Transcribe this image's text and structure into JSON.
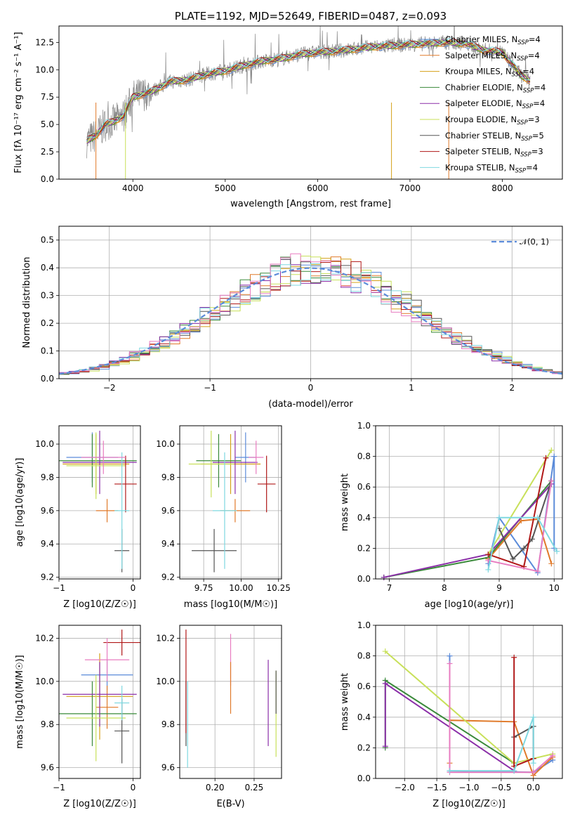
{
  "colors": {
    "Chabrier MILES": "#5b8bd9",
    "Salpeter MILES": "#e07a2a",
    "Kroupa MILES": "#d4a017",
    "Chabrier ELODIE": "#3a8a3a",
    "Salpeter ELODIE": "#8b2fa8",
    "Kroupa ELODIE": "#c8e05a",
    "Chabrier STELIB": "#555555",
    "Salpeter STELIB": "#b01818",
    "Kroupa STELIB": "#7fd8e0",
    "Salpeter STELIB pink": "#e87cc0"
  },
  "chart_data": [
    {
      "id": "spectrum",
      "type": "line",
      "title": "PLATE=1192, MJD=52649, FIBERID=0487, z=0.093",
      "xlabel": "wavelength [Angstrom, rest frame]",
      "ylabel": "Flux [fλ 10⁻¹⁷ erg cm⁻² s⁻¹ A⁻¹]",
      "xlim": [
        3200,
        8650
      ],
      "ylim": [
        0,
        14
      ],
      "xticks": [
        4000,
        5000,
        6000,
        7000,
        8000
      ],
      "yticks": [
        0.0,
        2.5,
        5.0,
        7.5,
        10.0,
        12.5
      ],
      "grid": false,
      "legend_position": "right",
      "legend": [
        {
          "label": "Chabrier MILES, N",
          "sub": "SSP",
          "tail": "=4",
          "color": "#5b8bd9"
        },
        {
          "label": "Salpeter MILES, N",
          "sub": "SSP",
          "tail": "=4",
          "color": "#e07a2a"
        },
        {
          "label": "Kroupa MILES, N",
          "sub": "SSP",
          "tail": "=4",
          "color": "#d4a017"
        },
        {
          "label": "Chabrier ELODIE, N",
          "sub": "SSP",
          "tail": "=4",
          "color": "#3a8a3a"
        },
        {
          "label": "Salpeter ELODIE, N",
          "sub": "SSP",
          "tail": "=4",
          "color": "#8b2fa8"
        },
        {
          "label": "Kroupa ELODIE, N",
          "sub": "SSP",
          "tail": "=3",
          "color": "#c8e05a"
        },
        {
          "label": "Chabrier STELIB, N",
          "sub": "SSP",
          "tail": "=5",
          "color": "#555555"
        },
        {
          "label": "Salpeter STELIB, N",
          "sub": "SSP",
          "tail": "=3",
          "color": "#b01818"
        },
        {
          "label": "Kroupa STELIB, N",
          "sub": "SSP",
          "tail": "=4",
          "color": "#7fd8e0"
        }
      ],
      "data_series": [
        {
          "x": 3500,
          "y": 3.5
        },
        {
          "x": 3600,
          "y": 4.0
        },
        {
          "x": 3700,
          "y": 5.0
        },
        {
          "x": 3800,
          "y": 5.3
        },
        {
          "x": 3900,
          "y": 5.8
        },
        {
          "x": 4000,
          "y": 7.5
        },
        {
          "x": 4200,
          "y": 8.0
        },
        {
          "x": 4400,
          "y": 8.9
        },
        {
          "x": 4600,
          "y": 9.1
        },
        {
          "x": 4800,
          "y": 9.6
        },
        {
          "x": 5000,
          "y": 9.9
        },
        {
          "x": 5200,
          "y": 10.4
        },
        {
          "x": 5400,
          "y": 10.8
        },
        {
          "x": 5600,
          "y": 11.0
        },
        {
          "x": 5800,
          "y": 11.4
        },
        {
          "x": 6000,
          "y": 11.6
        },
        {
          "x": 6200,
          "y": 11.7
        },
        {
          "x": 6400,
          "y": 11.9
        },
        {
          "x": 6600,
          "y": 12.1
        },
        {
          "x": 6800,
          "y": 12.2
        },
        {
          "x": 7000,
          "y": 12.3
        },
        {
          "x": 7200,
          "y": 12.4
        },
        {
          "x": 7400,
          "y": 12.5
        },
        {
          "x": 7600,
          "y": 12.4
        },
        {
          "x": 7800,
          "y": 11.8
        },
        {
          "x": 8000,
          "y": 11.6
        },
        {
          "x": 8200,
          "y": 9.5
        },
        {
          "x": 8300,
          "y": 9.0
        }
      ]
    },
    {
      "id": "residuals",
      "type": "line",
      "xlabel": "(data-model)/error",
      "ylabel": "Normed distribution",
      "xlim": [
        -2.5,
        2.5
      ],
      "ylim": [
        0,
        0.55
      ],
      "xticks": [
        -2,
        -1,
        0,
        1,
        2
      ],
      "xtick_labels": [
        "−2",
        "−1",
        "0",
        "1",
        "2"
      ],
      "yticks": [
        0.0,
        0.1,
        0.2,
        0.3,
        0.4,
        0.5
      ],
      "grid": true,
      "legend_position": "top-right",
      "legend": [
        {
          "label": "𝒩(0, 1)",
          "color": "#5b8bd9"
        }
      ],
      "gaussian": {
        "mu": 0,
        "sigma": 1
      }
    },
    {
      "id": "age-vs-Z",
      "type": "scatter",
      "xlabel": "Z [log10(Z/Z☉)]",
      "ylabel": "age  [log10(age/yr)]",
      "xlim": [
        -1.0,
        0.1
      ],
      "ylim": [
        9.19,
        10.11
      ],
      "xticks": [
        -1,
        0
      ],
      "xtick_labels": [
        "−1",
        "0"
      ],
      "yticks": [
        9.2,
        9.4,
        9.6,
        9.8,
        10.0
      ],
      "grid": true,
      "points": [
        {
          "x": -0.55,
          "y": 9.92,
          "xerr": 0.35,
          "yerr": 0.15,
          "color": "#5b8bd9"
        },
        {
          "x": -0.35,
          "y": 9.6,
          "xerr": 0.15,
          "yerr": 0.07,
          "color": "#e07a2a"
        },
        {
          "x": -0.5,
          "y": 9.88,
          "xerr": 0.45,
          "yerr": 0.18,
          "color": "#d4a017"
        },
        {
          "x": -0.55,
          "y": 9.9,
          "xerr": 0.6,
          "yerr": 0.16,
          "color": "#3a8a3a"
        },
        {
          "x": -0.45,
          "y": 9.89,
          "xerr": 0.5,
          "yerr": 0.19,
          "color": "#8b2fa8"
        },
        {
          "x": -0.5,
          "y": 9.87,
          "xerr": 0.4,
          "yerr": 0.2,
          "color": "#c8e05a"
        },
        {
          "x": -0.15,
          "y": 9.36,
          "xerr": 0.1,
          "yerr": 0.13,
          "color": "#555555"
        },
        {
          "x": -0.1,
          "y": 9.76,
          "xerr": 0.15,
          "yerr": 0.17,
          "color": "#b01818"
        },
        {
          "x": -0.15,
          "y": 9.6,
          "xerr": 0.1,
          "yerr": 0.35,
          "color": "#7fd8e0"
        },
        {
          "x": -0.4,
          "y": 9.92,
          "xerr": 0.3,
          "yerr": 0.1,
          "color": "#e87cc0"
        }
      ]
    },
    {
      "id": "age-vs-mass",
      "type": "scatter",
      "xlabel": "mass [log10(M/M☉)]",
      "ylabel": "",
      "xlim": [
        9.59,
        10.27
      ],
      "ylim": [
        9.19,
        10.11
      ],
      "xticks": [
        9.75,
        10.0,
        10.25
      ],
      "xtick_labels": [
        "9.75",
        "10.00",
        "10.25"
      ],
      "yticks": [
        9.2,
        9.4,
        9.6,
        9.8,
        10.0
      ],
      "grid": true,
      "points": [
        {
          "x": 10.03,
          "y": 9.92,
          "xerr": 0.07,
          "yerr": 0.15,
          "color": "#5b8bd9"
        },
        {
          "x": 9.96,
          "y": 9.6,
          "xerr": 0.1,
          "yerr": 0.07,
          "color": "#e07a2a"
        },
        {
          "x": 9.93,
          "y": 9.88,
          "xerr": 0.2,
          "yerr": 0.18,
          "color": "#d4a017"
        },
        {
          "x": 9.85,
          "y": 9.9,
          "xerr": 0.15,
          "yerr": 0.16,
          "color": "#3a8a3a"
        },
        {
          "x": 9.96,
          "y": 9.89,
          "xerr": 0.15,
          "yerr": 0.19,
          "color": "#8b2fa8"
        },
        {
          "x": 9.8,
          "y": 9.88,
          "xerr": 0.15,
          "yerr": 0.2,
          "color": "#c8e05a"
        },
        {
          "x": 9.82,
          "y": 9.36,
          "xerr": 0.15,
          "yerr": 0.13,
          "color": "#555555"
        },
        {
          "x": 10.17,
          "y": 9.76,
          "xerr": 0.06,
          "yerr": 0.17,
          "color": "#b01818"
        },
        {
          "x": 9.89,
          "y": 9.6,
          "xerr": 0.08,
          "yerr": 0.35,
          "color": "#7fd8e0"
        },
        {
          "x": 10.1,
          "y": 9.92,
          "xerr": 0.05,
          "yerr": 0.1,
          "color": "#e87cc0"
        }
      ]
    },
    {
      "id": "massweight-vs-age",
      "type": "line",
      "xlabel": "age  [log10(age/yr)]",
      "ylabel": "mass weight",
      "xlim": [
        6.75,
        10.15
      ],
      "ylim": [
        0,
        1.0
      ],
      "xticks": [
        7,
        8,
        9,
        10
      ],
      "yticks": [
        0.0,
        0.2,
        0.4,
        0.6,
        0.8,
        1.0
      ],
      "grid": true,
      "series": [
        {
          "color": "#5b8bd9",
          "x": [
            8.8,
            9.0,
            9.7,
            10.0,
            10.0
          ],
          "y": [
            0.1,
            0.4,
            0.04,
            0.8,
            0.2
          ]
        },
        {
          "color": "#e07a2a",
          "x": [
            8.8,
            9.4,
            9.7,
            9.95
          ],
          "y": [
            0.13,
            0.38,
            0.39,
            0.1
          ]
        },
        {
          "color": "#3a8a3a",
          "x": [
            6.9,
            8.8,
            9.95
          ],
          "y": [
            0.01,
            0.14,
            0.64
          ]
        },
        {
          "color": "#8b2fa8",
          "x": [
            6.9,
            8.8,
            9.95
          ],
          "y": [
            0.01,
            0.16,
            0.62
          ]
        },
        {
          "color": "#c8e05a",
          "x": [
            8.8,
            9.95
          ],
          "y": [
            0.16,
            0.84
          ]
        },
        {
          "color": "#555555",
          "x": [
            9.0,
            9.25,
            9.45,
            9.6,
            9.95
          ],
          "y": [
            0.33,
            0.13,
            0.2,
            0.26,
            0.64
          ]
        },
        {
          "color": "#b01818",
          "x": [
            8.8,
            9.45,
            9.85
          ],
          "y": [
            0.16,
            0.08,
            0.79
          ]
        },
        {
          "color": "#e87cc0",
          "x": [
            8.8,
            9.7,
            9.95
          ],
          "y": [
            0.12,
            0.05,
            0.64
          ]
        },
        {
          "color": "#7fd8e0",
          "x": [
            8.8,
            9.0,
            9.7,
            10.05
          ],
          "y": [
            0.06,
            0.4,
            0.4,
            0.18
          ]
        }
      ]
    },
    {
      "id": "mass-vs-Z",
      "type": "scatter",
      "xlabel": "Z [log10(Z/Z☉)]",
      "ylabel": "mass [log10(M/M☉)]",
      "xlim": [
        -1.0,
        0.1
      ],
      "ylim": [
        9.55,
        10.26
      ],
      "xticks": [
        -1,
        0
      ],
      "xtick_labels": [
        "−1",
        "0"
      ],
      "yticks": [
        9.6,
        9.8,
        10.0,
        10.2
      ],
      "grid": true,
      "points": [
        {
          "x": -0.35,
          "y": 10.03,
          "xerr": 0.35,
          "yerr": 0.07,
          "color": "#5b8bd9"
        },
        {
          "x": -0.35,
          "y": 9.88,
          "xerr": 0.15,
          "yerr": 0.1,
          "color": "#e07a2a"
        },
        {
          "x": -0.45,
          "y": 9.93,
          "xerr": 0.45,
          "yerr": 0.2,
          "color": "#d4a017"
        },
        {
          "x": -0.55,
          "y": 9.85,
          "xerr": 0.6,
          "yerr": 0.15,
          "color": "#3a8a3a"
        },
        {
          "x": -0.45,
          "y": 9.94,
          "xerr": 0.5,
          "yerr": 0.15,
          "color": "#8b2fa8"
        },
        {
          "x": -0.5,
          "y": 9.83,
          "xerr": 0.4,
          "yerr": 0.2,
          "color": "#c8e05a"
        },
        {
          "x": -0.15,
          "y": 9.77,
          "xerr": 0.1,
          "yerr": 0.15,
          "color": "#555555"
        },
        {
          "x": -0.15,
          "y": 10.18,
          "xerr": 0.25,
          "yerr": 0.06,
          "color": "#b01818"
        },
        {
          "x": -0.15,
          "y": 9.9,
          "xerr": 0.1,
          "yerr": 0.08,
          "color": "#7fd8e0"
        },
        {
          "x": -0.35,
          "y": 10.1,
          "xerr": 0.3,
          "yerr": 0.1,
          "color": "#e87cc0"
        }
      ]
    },
    {
      "id": "mass-vs-EBV",
      "type": "scatter",
      "xlabel": "E(B-V)",
      "ylabel": "",
      "xlim": [
        0.155,
        0.285
      ],
      "ylim": [
        9.55,
        10.26
      ],
      "xticks": [
        0.2,
        0.25
      ],
      "xtick_labels": [
        "0.20",
        "0.25"
      ],
      "yticks": [
        9.6,
        9.8,
        10.0,
        10.2
      ],
      "grid": true,
      "points": [
        {
          "x": 0.163,
          "y": 9.85,
          "yerr": 0.15,
          "color": "#555555"
        },
        {
          "x": 0.163,
          "y": 10.0,
          "yerr": 0.24,
          "color": "#b01818"
        },
        {
          "x": 0.165,
          "y": 9.8,
          "yerr": 0.2,
          "color": "#7fd8e0"
        },
        {
          "x": 0.22,
          "y": 10.1,
          "yerr": 0.12,
          "color": "#e87cc0"
        },
        {
          "x": 0.22,
          "y": 9.97,
          "yerr": 0.12,
          "color": "#e07a2a"
        },
        {
          "x": 0.268,
          "y": 9.9,
          "yerr": 0.2,
          "color": "#8b2fa8"
        },
        {
          "x": 0.278,
          "y": 9.85,
          "yerr": 0.2,
          "color": "#c8e05a"
        },
        {
          "x": 0.278,
          "y": 9.95,
          "yerr": 0.1,
          "color": "#555555"
        }
      ]
    },
    {
      "id": "massweight-vs-Z",
      "type": "line",
      "xlabel": "Z [log10(Z/Z☉)]",
      "ylabel": "mass weight",
      "xlim": [
        -2.45,
        0.45
      ],
      "ylim": [
        0,
        1.0
      ],
      "xticks": [
        -2.0,
        -1.5,
        -1.0,
        -0.5,
        0.0
      ],
      "xtick_labels": [
        "−2.0",
        "−1.5",
        "−1.0",
        "−0.5",
        "0.0"
      ],
      "yticks": [
        0.0,
        0.2,
        0.4,
        0.6,
        0.8,
        1.0
      ],
      "grid": true,
      "series": [
        {
          "color": "#5b8bd9",
          "x": [
            -1.3,
            -1.3,
            0.0,
            0.3
          ],
          "y": [
            0.8,
            0.05,
            0.04,
            0.12
          ]
        },
        {
          "color": "#e07a2a",
          "x": [
            -1.3,
            -1.3,
            -0.3,
            0.0,
            0.3
          ],
          "y": [
            0.1,
            0.38,
            0.37,
            0.02,
            0.14
          ]
        },
        {
          "color": "#3a8a3a",
          "x": [
            -2.3,
            -2.3,
            -0.3
          ],
          "y": [
            0.2,
            0.64,
            0.1
          ]
        },
        {
          "color": "#8b2fa8",
          "x": [
            -2.3,
            -2.3,
            -0.3
          ],
          "y": [
            0.21,
            0.62,
            0.05
          ]
        },
        {
          "color": "#c8e05a",
          "x": [
            -2.3,
            -0.3,
            0.3
          ],
          "y": [
            0.83,
            0.1,
            0.16
          ]
        },
        {
          "color": "#555555",
          "x": [
            -0.3,
            0.0,
            0.0
          ],
          "y": [
            0.27,
            0.34,
            0.13
          ]
        },
        {
          "color": "#b01818",
          "x": [
            -0.3,
            -0.3,
            0.0
          ],
          "y": [
            0.79,
            0.08,
            0.13
          ]
        },
        {
          "color": "#e87cc0",
          "x": [
            -1.3,
            -1.3,
            0.0,
            0.3
          ],
          "y": [
            0.75,
            0.04,
            0.04,
            0.15
          ]
        },
        {
          "color": "#7fd8e0",
          "x": [
            -1.3,
            -0.3,
            0.0,
            0.0
          ],
          "y": [
            0.05,
            0.05,
            0.4,
            0.1
          ]
        }
      ]
    }
  ]
}
